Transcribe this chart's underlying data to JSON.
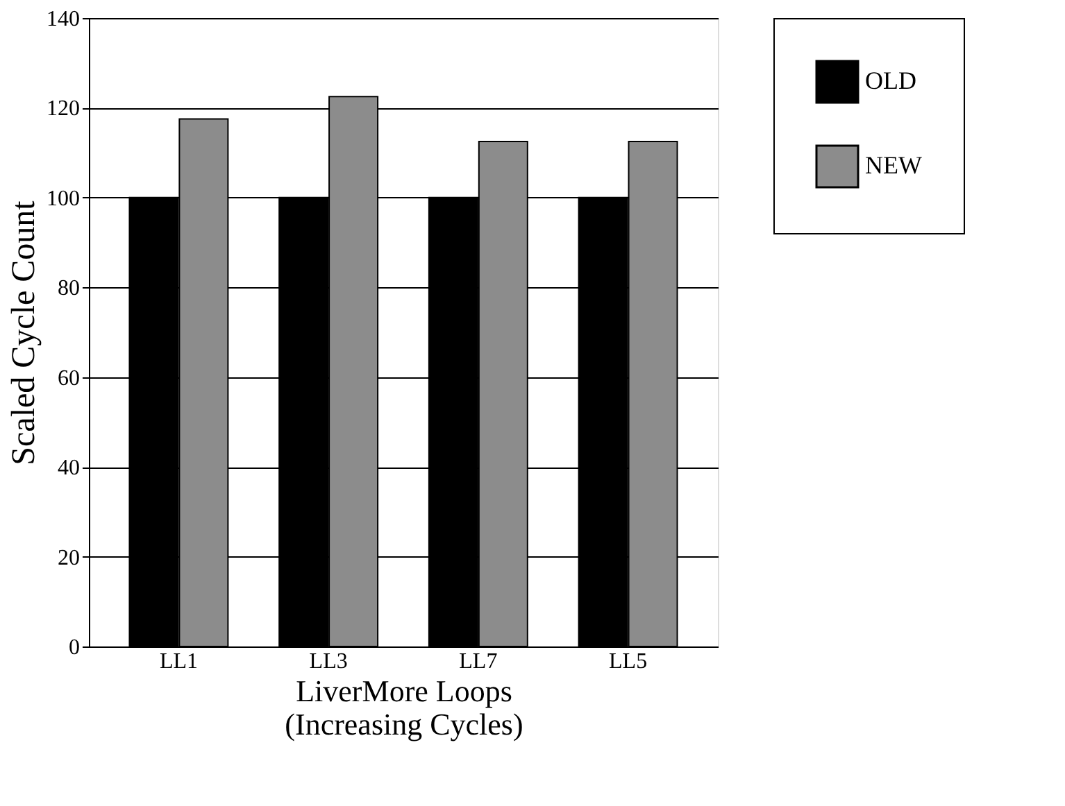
{
  "chart_data": {
    "type": "bar",
    "xlabel": "LiverMore Loops\n(Increasing Cycles)",
    "ylabel": "Scaled Cycle Count",
    "categories": [
      "LL1",
      "LL3",
      "LL7",
      "LL5"
    ],
    "series": [
      {
        "name": "OLD",
        "color": "#000000",
        "values": [
          100,
          100,
          100,
          100
        ]
      },
      {
        "name": "NEW",
        "color": "#8c8c8c",
        "values": [
          117.5,
          122.5,
          112.5,
          112.5
        ]
      }
    ],
    "ylim": [
      0,
      140
    ],
    "yticks": [
      0,
      20,
      40,
      60,
      80,
      100,
      120,
      140
    ],
    "grid": "y",
    "legend": "right"
  }
}
